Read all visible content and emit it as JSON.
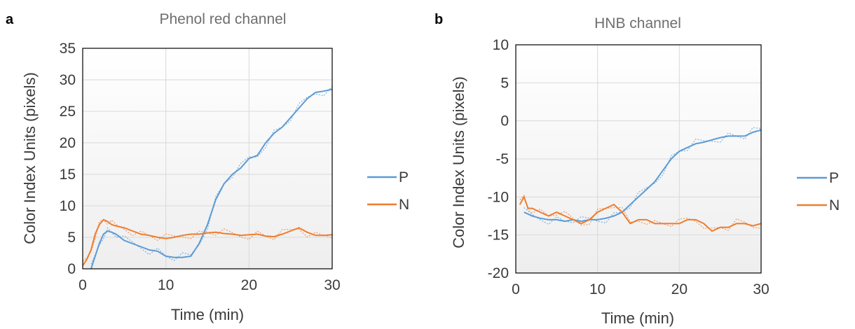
{
  "colors": {
    "P": "#5b9bd5",
    "N": "#ed7d31",
    "grid": "#d9d9d9",
    "frame": "#000000"
  },
  "chart_data": [
    {
      "type": "line",
      "panel": "a",
      "title": "Phenol red channel",
      "xlabel": "Time (min)",
      "ylabel": "Color Index Units (pixels)",
      "xlim": [
        0,
        30
      ],
      "ylim": [
        0,
        35
      ],
      "xticks": [
        "0",
        "10",
        "20",
        "30"
      ],
      "yticks": [
        "0",
        "5",
        "10",
        "15",
        "20",
        "25",
        "30",
        "35"
      ],
      "grid": true,
      "legend": "right",
      "series": [
        {
          "name": "P",
          "x": [
            1,
            1.5,
            2,
            2.5,
            3,
            3.5,
            4,
            5,
            6,
            7,
            8,
            9,
            10,
            11,
            12,
            13,
            14,
            15,
            16,
            17,
            18,
            19,
            20,
            21,
            22,
            23,
            24,
            25,
            26,
            27,
            28,
            29,
            30
          ],
          "y": [
            0,
            2,
            4,
            5.5,
            6,
            5.8,
            5.5,
            4.5,
            4,
            3.5,
            3,
            2.8,
            2,
            1.8,
            1.8,
            2,
            4,
            7,
            11,
            13.5,
            15,
            16,
            17.5,
            18,
            20,
            21.5,
            22.5,
            24,
            25.5,
            27,
            28,
            28.2,
            28.5
          ]
        },
        {
          "name": "N",
          "x": [
            0,
            0.5,
            1,
            1.5,
            2,
            2.5,
            3,
            3.5,
            4,
            5,
            6,
            7,
            8,
            9,
            10,
            11,
            12,
            13,
            14,
            15,
            16,
            17,
            18,
            19,
            20,
            21,
            22,
            23,
            24,
            25,
            26,
            27,
            28,
            29,
            30
          ],
          "y": [
            0.5,
            1.5,
            3,
            5.5,
            7,
            7.8,
            7.5,
            7,
            6.8,
            6.5,
            6,
            5.5,
            5.3,
            5,
            4.8,
            5,
            5.3,
            5.5,
            5.5,
            5.7,
            5.8,
            5.6,
            5.5,
            5.3,
            5.4,
            5.5,
            5.2,
            5.1,
            5.5,
            6,
            6.5,
            5.8,
            5.3,
            5.3,
            5.4
          ]
        }
      ]
    },
    {
      "type": "line",
      "panel": "b",
      "title": "HNB channel",
      "xlabel": "Time (min)",
      "ylabel": "Color Index Units (pixels)",
      "xlim": [
        0,
        30
      ],
      "ylim": [
        -20,
        10
      ],
      "xticks": [
        "0",
        "10",
        "20",
        "30"
      ],
      "yticks": [
        "-20",
        "-15",
        "-10",
        "-5",
        "0",
        "5",
        "10"
      ],
      "grid": true,
      "legend": "right",
      "series": [
        {
          "name": "P",
          "x": [
            1,
            2,
            3,
            4,
            5,
            6,
            7,
            8,
            9,
            10,
            11,
            12,
            13,
            14,
            15,
            16,
            17,
            18,
            19,
            20,
            21,
            22,
            23,
            24,
            25,
            26,
            27,
            28,
            29,
            30
          ],
          "y": [
            -12,
            -12.5,
            -12.8,
            -13,
            -13,
            -13.2,
            -13,
            -13.2,
            -13,
            -13,
            -12.8,
            -12.5,
            -12,
            -11,
            -10,
            -9,
            -8,
            -6.5,
            -5,
            -4,
            -3.5,
            -3,
            -2.8,
            -2.5,
            -2.2,
            -2,
            -2,
            -2,
            -1.5,
            -1.2
          ]
        },
        {
          "name": "N",
          "x": [
            0.5,
            1,
            1.5,
            2,
            3,
            4,
            5,
            6,
            7,
            8,
            9,
            10,
            11,
            12,
            13,
            14,
            15,
            16,
            17,
            18,
            19,
            20,
            21,
            22,
            23,
            24,
            25,
            26,
            27,
            28,
            29,
            30
          ],
          "y": [
            -11,
            -10,
            -11.5,
            -11.5,
            -12,
            -12.5,
            -12,
            -12.5,
            -13,
            -13.5,
            -13,
            -12,
            -11.5,
            -11,
            -12,
            -13.5,
            -13,
            -13,
            -13.5,
            -13.5,
            -13.5,
            -13.5,
            -13,
            -13,
            -13.5,
            -14.5,
            -14,
            -14,
            -13.5,
            -13.5,
            -13.8,
            -13.5
          ]
        }
      ]
    }
  ]
}
